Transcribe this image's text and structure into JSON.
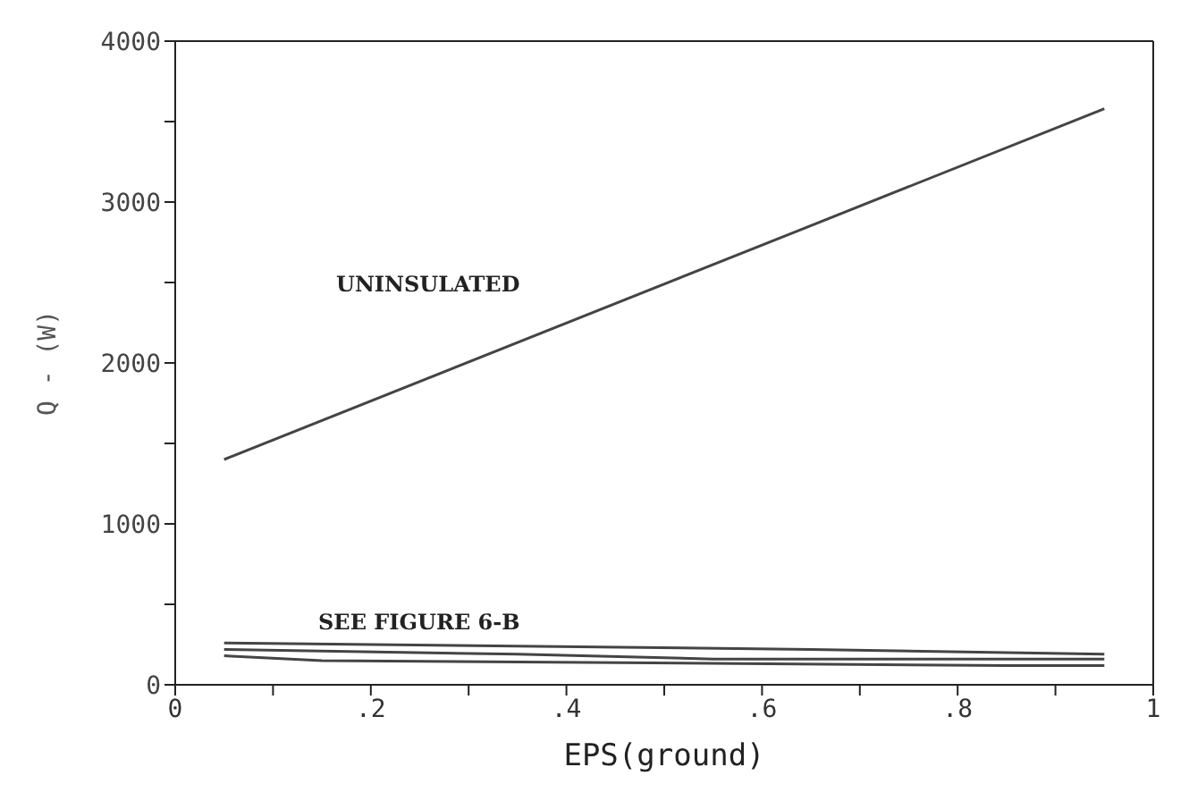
{
  "chart_data": {
    "type": "line",
    "xlabel": "EPS(ground)",
    "ylabel": "Q - (W)",
    "xlim": [
      0,
      1
    ],
    "ylim": [
      0,
      4000
    ],
    "xticks": [
      0,
      {
        "value": 0.1,
        "label": null
      },
      {
        "value": 0.2,
        "label": ".2"
      },
      {
        "value": 0.3,
        "label": null
      },
      {
        "value": 0.4,
        "label": ".4"
      },
      {
        "value": 0.5,
        "label": null
      },
      {
        "value": 0.6,
        "label": ".6"
      },
      {
        "value": 0.7,
        "label": null
      },
      {
        "value": 0.8,
        "label": ".8"
      },
      {
        "value": 0.9,
        "label": null
      },
      1
    ],
    "yticks": [
      0,
      {
        "value": 500,
        "label": null
      },
      1000,
      {
        "value": 1500,
        "label": null
      },
      2000,
      {
        "value": 2500,
        "label": null
      },
      3000,
      {
        "value": 3500,
        "label": null
      },
      4000
    ],
    "series": [
      {
        "color": "#444444",
        "x": [
          0.05,
          0.95
        ],
        "values": [
          1400,
          3580
        ]
      },
      {
        "color": "#444444",
        "x": [
          0.05,
          0.65,
          0.95
        ],
        "values": [
          260,
          220,
          190
        ]
      },
      {
        "color": "#444444",
        "x": [
          0.05,
          0.35,
          0.55,
          0.95
        ],
        "values": [
          220,
          190,
          160,
          160
        ]
      },
      {
        "color": "#444444",
        "x": [
          0.05,
          0.15,
          0.85,
          0.95
        ],
        "values": [
          180,
          150,
          120,
          120
        ]
      }
    ],
    "annotations": [
      "UNINSULATED",
      "SEE FIGURE 6-B"
    ],
    "grid": false,
    "marker": "none",
    "line_style": "solid"
  }
}
